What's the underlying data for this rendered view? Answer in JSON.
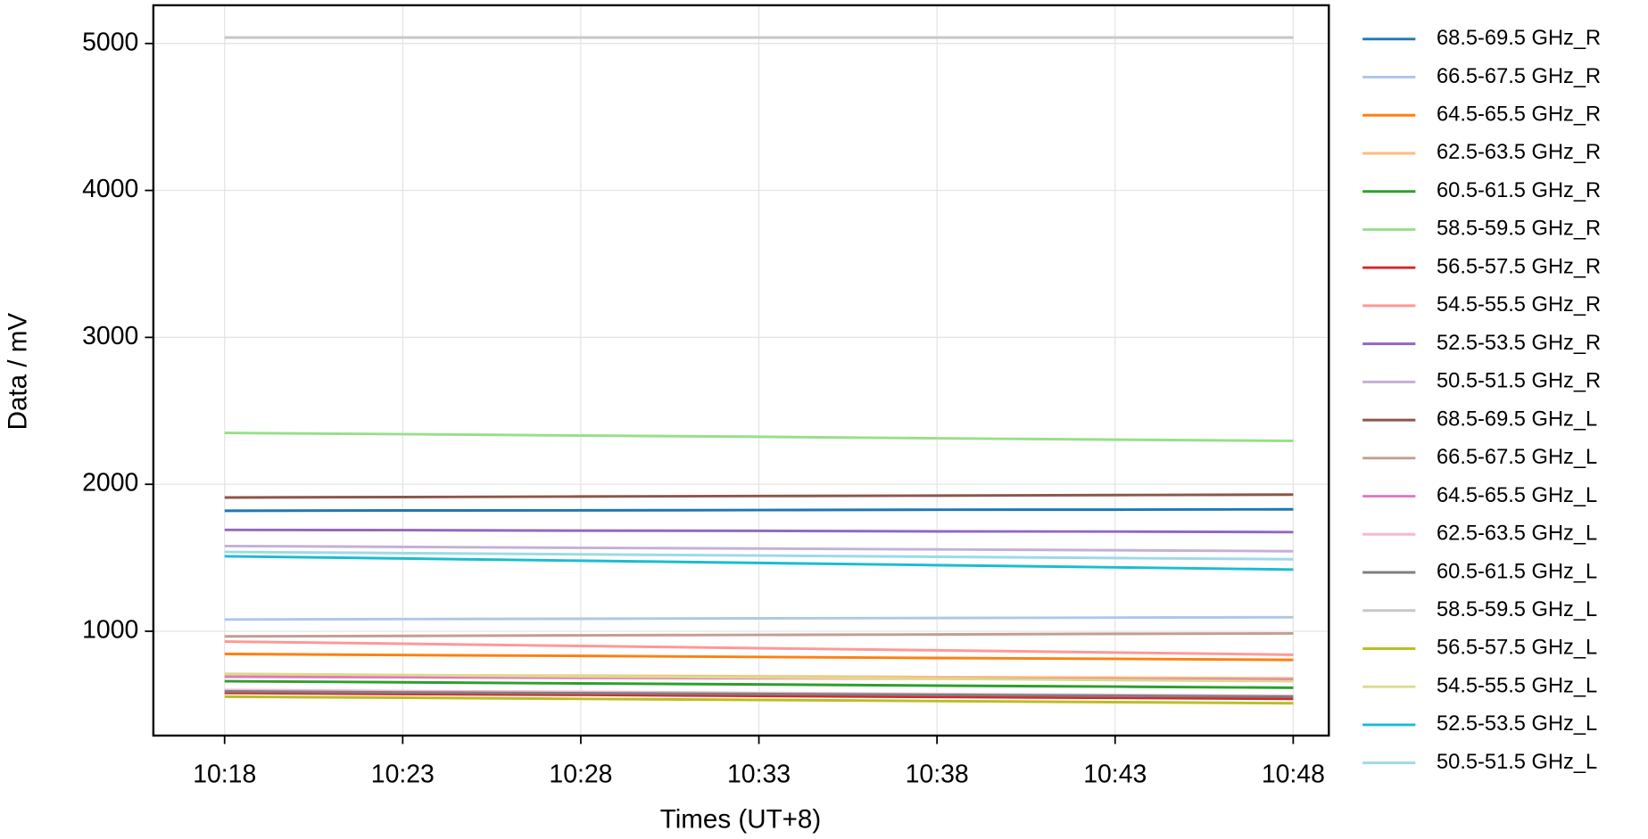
{
  "chart_data": {
    "type": "line",
    "xlabel": "Times (UT+8)",
    "ylabel": "Data / mV",
    "x": [
      "10:18",
      "10:23",
      "10:28",
      "10:33",
      "10:38",
      "10:43",
      "10:48"
    ],
    "xlim": [
      "10:16",
      "10:49"
    ],
    "xticks": [
      "10:18",
      "10:23",
      "10:28",
      "10:33",
      "10:38",
      "10:43",
      "10:48"
    ],
    "ylim": [
      290,
      5260
    ],
    "yticks": [
      1000,
      2000,
      3000,
      4000,
      5000
    ],
    "grid": true,
    "legend": "outside right",
    "series": [
      {
        "name": "68.5-69.5 GHz_R",
        "color": "#1f77b4",
        "values": [
          1820,
          1822,
          1823,
          1825,
          1827,
          1828,
          1830
        ]
      },
      {
        "name": "66.5-67.5 GHz_R",
        "color": "#aec7e8",
        "values": [
          1080,
          1083,
          1085,
          1088,
          1090,
          1093,
          1095
        ]
      },
      {
        "name": "64.5-65.5 GHz_R",
        "color": "#ff7f0e",
        "values": [
          845,
          838,
          832,
          825,
          818,
          812,
          805
        ]
      },
      {
        "name": "62.5-63.5 GHz_R",
        "color": "#ffbb78",
        "values": [
          705,
          701,
          697,
          693,
          688,
          684,
          680
        ]
      },
      {
        "name": "60.5-61.5 GHz_R",
        "color": "#2ca02c",
        "values": [
          660,
          653,
          645,
          638,
          630,
          623,
          615
        ]
      },
      {
        "name": "58.5-59.5 GHz_R",
        "color": "#98df8a",
        "values": [
          2350,
          2341,
          2332,
          2323,
          2313,
          2304,
          2295
        ]
      },
      {
        "name": "56.5-57.5 GHz_R",
        "color": "#d62728",
        "values": [
          580,
          573,
          567,
          560,
          553,
          547,
          540
        ]
      },
      {
        "name": "54.5-55.5 GHz_R",
        "color": "#ff9896",
        "values": [
          930,
          915,
          900,
          885,
          870,
          855,
          840
        ]
      },
      {
        "name": "52.5-53.5 GHz_R",
        "color": "#9467bd",
        "values": [
          1690,
          1688,
          1685,
          1683,
          1680,
          1678,
          1675
        ]
      },
      {
        "name": "50.5-51.5 GHz_R",
        "color": "#c5b0d5",
        "values": [
          1580,
          1574,
          1568,
          1563,
          1557,
          1551,
          1545
        ]
      },
      {
        "name": "68.5-69.5 GHz_L",
        "color": "#8c564b",
        "values": [
          1910,
          1913,
          1917,
          1920,
          1923,
          1927,
          1930
        ]
      },
      {
        "name": "66.5-67.5 GHz_L",
        "color": "#c49c94",
        "values": [
          965,
          968,
          972,
          975,
          978,
          982,
          985
        ]
      },
      {
        "name": "64.5-65.5 GHz_L",
        "color": "#e377c2",
        "values": [
          690,
          687,
          683,
          680,
          677,
          673,
          670
        ]
      },
      {
        "name": "62.5-63.5 GHz_L",
        "color": "#f7b6d2",
        "values": [
          600,
          593,
          587,
          580,
          573,
          567,
          560
        ]
      },
      {
        "name": "60.5-61.5 GHz_L",
        "color": "#7f7f7f",
        "values": [
          590,
          584,
          578,
          573,
          567,
          561,
          555
        ]
      },
      {
        "name": "58.5-59.5 GHz_L",
        "color": "#c7c7c7",
        "values": [
          5040,
          5040,
          5040,
          5040,
          5040,
          5040,
          5040
        ]
      },
      {
        "name": "56.5-57.5 GHz_L",
        "color": "#bcbd22",
        "values": [
          555,
          548,
          540,
          533,
          525,
          518,
          510
        ]
      },
      {
        "name": "54.5-55.5 GHz_L",
        "color": "#dbdb8d",
        "values": [
          710,
          702,
          693,
          685,
          677,
          668,
          660
        ]
      },
      {
        "name": "52.5-53.5 GHz_L",
        "color": "#17becf",
        "values": [
          1510,
          1495,
          1480,
          1465,
          1450,
          1435,
          1420
        ]
      },
      {
        "name": "50.5-51.5 GHz_L",
        "color": "#9edae5",
        "values": [
          1540,
          1532,
          1523,
          1515,
          1507,
          1498,
          1490
        ]
      }
    ]
  }
}
